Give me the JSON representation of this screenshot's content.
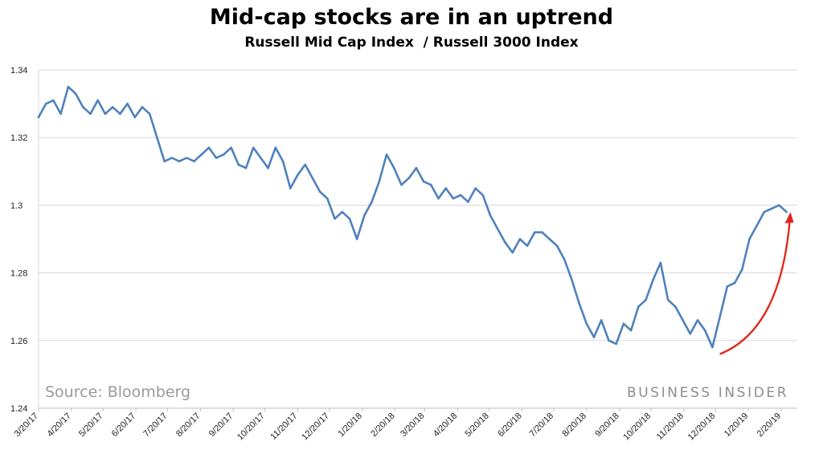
{
  "chart_data": {
    "type": "line",
    "title": "Mid-cap stocks are in an uptrend",
    "subtitle": "Russell Mid Cap Index  / Russell 3000 Index",
    "xlabel": "",
    "ylabel": "",
    "ylim": [
      1.24,
      1.34
    ],
    "y_ticks": [
      "1.24",
      "1.26",
      "1.28",
      "1.3",
      "1.32",
      "1.34"
    ],
    "x_ticks": [
      "3/20/17",
      "4/20/17",
      "5/20/17",
      "6/20/17",
      "7/20/17",
      "8/20/17",
      "9/20/17",
      "10/20/17",
      "11/20/17",
      "12/20/17",
      "1/20/18",
      "2/20/18",
      "3/20/18",
      "4/20/18",
      "5/20/18",
      "6/20/18",
      "7/20/18",
      "8/20/18",
      "9/20/18",
      "10/20/18",
      "11/20/18",
      "12/20/18",
      "1/20/19",
      "2/20/19"
    ],
    "grid": true,
    "line_color": "#4f81bd",
    "arrow_color": "#e0261b",
    "series": [
      {
        "x": [
          "2017-03-20",
          "2017-03-27",
          "2017-04-03",
          "2017-04-10",
          "2017-04-17",
          "2017-04-24",
          "2017-05-01",
          "2017-05-08",
          "2017-05-15",
          "2017-05-22",
          "2017-05-29",
          "2017-06-05",
          "2017-06-12",
          "2017-06-19",
          "2017-06-26",
          "2017-07-03",
          "2017-07-10",
          "2017-07-17",
          "2017-07-24",
          "2017-07-31",
          "2017-08-07",
          "2017-08-14",
          "2017-08-21",
          "2017-08-28",
          "2017-09-04",
          "2017-09-11",
          "2017-09-18",
          "2017-09-25",
          "2017-10-02",
          "2017-10-09",
          "2017-10-16",
          "2017-10-23",
          "2017-10-30",
          "2017-11-06",
          "2017-11-13",
          "2017-11-20",
          "2017-11-27",
          "2017-12-04",
          "2017-12-11",
          "2017-12-18",
          "2017-12-25",
          "2018-01-01",
          "2018-01-08",
          "2018-01-15",
          "2018-01-22",
          "2018-01-29",
          "2018-02-05",
          "2018-02-12",
          "2018-02-19",
          "2018-02-26",
          "2018-03-05",
          "2018-03-12",
          "2018-03-19",
          "2018-03-26",
          "2018-04-02",
          "2018-04-09",
          "2018-04-16",
          "2018-04-23",
          "2018-04-30",
          "2018-05-07",
          "2018-05-14",
          "2018-05-21",
          "2018-05-28",
          "2018-06-04",
          "2018-06-11",
          "2018-06-18",
          "2018-06-25",
          "2018-07-02",
          "2018-07-09",
          "2018-07-16",
          "2018-07-23",
          "2018-07-30",
          "2018-08-06",
          "2018-08-13",
          "2018-08-20",
          "2018-08-27",
          "2018-09-03",
          "2018-09-10",
          "2018-09-17",
          "2018-09-24",
          "2018-10-01",
          "2018-10-08",
          "2018-10-15",
          "2018-10-22",
          "2018-10-29",
          "2018-11-05",
          "2018-11-12",
          "2018-11-19",
          "2018-11-26",
          "2018-12-03",
          "2018-12-10",
          "2018-12-17",
          "2018-12-24",
          "2018-12-31",
          "2019-01-07",
          "2019-01-14",
          "2019-01-21",
          "2019-01-28",
          "2019-02-04",
          "2019-02-11",
          "2019-02-18",
          "2019-02-25"
        ],
        "values": [
          1.326,
          1.33,
          1.331,
          1.327,
          1.335,
          1.333,
          1.329,
          1.327,
          1.331,
          1.327,
          1.329,
          1.327,
          1.33,
          1.326,
          1.329,
          1.327,
          1.32,
          1.313,
          1.314,
          1.313,
          1.314,
          1.313,
          1.315,
          1.317,
          1.314,
          1.315,
          1.317,
          1.312,
          1.311,
          1.317,
          1.314,
          1.311,
          1.317,
          1.313,
          1.305,
          1.309,
          1.312,
          1.308,
          1.304,
          1.302,
          1.296,
          1.298,
          1.296,
          1.29,
          1.297,
          1.301,
          1.307,
          1.315,
          1.311,
          1.306,
          1.308,
          1.311,
          1.307,
          1.306,
          1.302,
          1.305,
          1.302,
          1.303,
          1.301,
          1.305,
          1.303,
          1.297,
          1.293,
          1.289,
          1.286,
          1.29,
          1.288,
          1.292,
          1.292,
          1.29,
          1.288,
          1.284,
          1.278,
          1.271,
          1.265,
          1.261,
          1.266,
          1.26,
          1.259,
          1.265,
          1.263,
          1.27,
          1.272,
          1.278,
          1.283,
          1.272,
          1.27,
          1.266,
          1.262,
          1.266,
          1.263,
          1.258,
          1.267,
          1.276,
          1.277,
          1.281,
          1.29,
          1.294,
          1.298,
          1.299,
          1.3,
          1.298
        ],
        "arrow": {
          "from": [
            "2018-12-24",
            1.256
          ],
          "to": [
            "2019-02-28",
            1.298
          ]
        }
      }
    ]
  },
  "footer": {
    "source": "Source: Bloomberg",
    "brand": "BUSINESS INSIDER"
  }
}
